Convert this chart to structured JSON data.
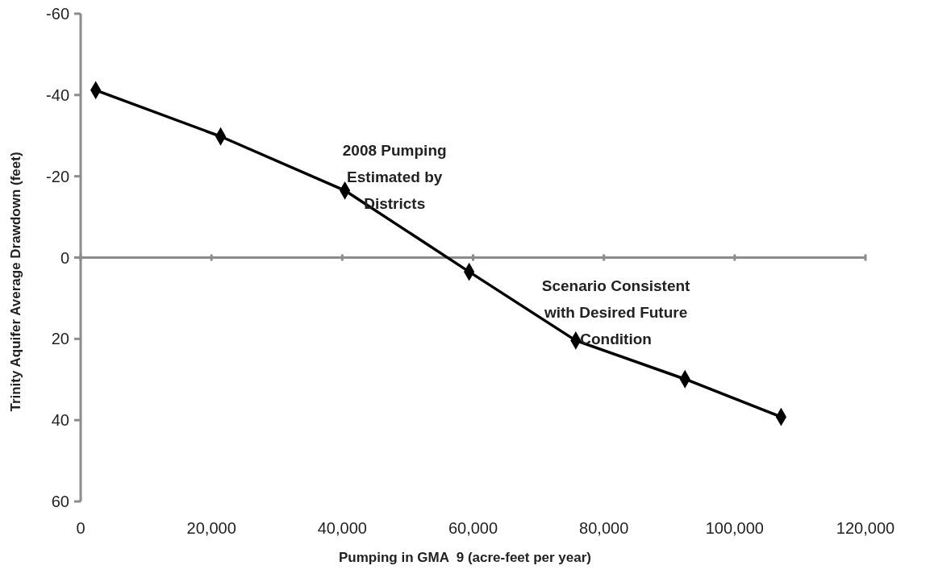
{
  "chart_data": {
    "type": "line",
    "xlabel": "Pumping in GMA  9 (acre-feet per year)",
    "ylabel": "Trinity Aquifer Average Drawdown (feet)",
    "x": [
      2300,
      21400,
      40400,
      59400,
      75700,
      92400,
      107100
    ],
    "series": [
      {
        "color": "#000000",
        "values": [
          -41.2,
          -29.8,
          -16.5,
          3.5,
          20.4,
          29.9,
          39.2
        ]
      }
    ],
    "xlim": [
      0,
      120000
    ],
    "xticks": [
      {
        "value": 0,
        "label": "0"
      },
      {
        "value": 20000,
        "label": "20,000"
      },
      {
        "value": 40000,
        "label": "40,000"
      },
      {
        "value": 60000,
        "label": "60,000"
      },
      {
        "value": 80000,
        "label": "80,000"
      },
      {
        "value": 100000,
        "label": "100,000"
      },
      {
        "value": 120000,
        "label": "120,000"
      }
    ],
    "ylim": [
      60,
      -60
    ],
    "yticks": [
      -60,
      -40,
      -20,
      0,
      20,
      40,
      60
    ],
    "annotations": [
      "2008 Pumping Estimated by Districts",
      "Scenario Consistent with Desired Future Condition"
    ],
    "marker": "diamond",
    "line_style": "solid"
  }
}
